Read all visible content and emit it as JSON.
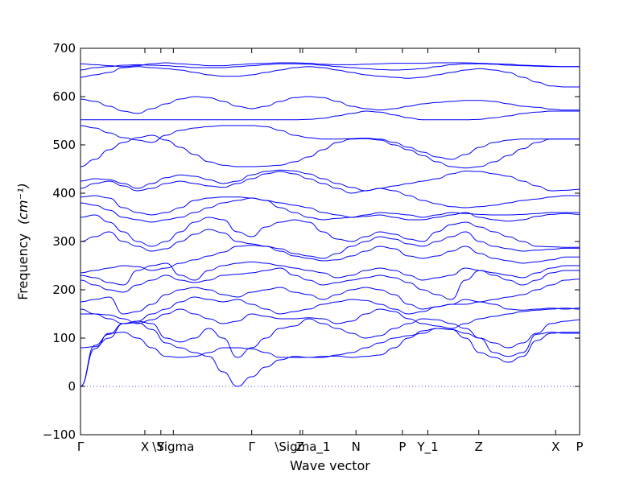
{
  "chart_data": {
    "type": "line",
    "xlabel": "Wave vector",
    "ylabel": "Frequency",
    "ylabel_unit": "(cm⁻¹)",
    "ylim": [
      -100,
      700
    ],
    "yticks": [
      -100,
      0,
      100,
      200,
      300,
      400,
      500,
      600,
      700
    ],
    "xlim": [
      0,
      1
    ],
    "high_symmetry_points": [
      {
        "label": "Γ",
        "x": 0.0
      },
      {
        "label": "X",
        "x": 0.129
      },
      {
        "label": "Y",
        "x": 0.161
      },
      {
        "label": "\\Sigma",
        "x": 0.186
      },
      {
        "label": "Γ",
        "x": 0.343
      },
      {
        "label": "Z",
        "x": 0.44
      },
      {
        "label": "\\Sigma_1",
        "x": 0.445
      },
      {
        "label": "N",
        "x": 0.552
      },
      {
        "label": "P",
        "x": 0.645
      },
      {
        "label": "Y_1",
        "x": 0.696
      },
      {
        "label": "Z",
        "x": 0.798
      },
      {
        "label": "X",
        "x": 0.952
      },
      {
        "label": "P",
        "x": 1.0
      }
    ],
    "zero_line": {
      "y": 0,
      "style": "dotted"
    },
    "grid": false,
    "line_color": "#0000ff",
    "series": [
      {
        "values": [
          0,
          78,
          110,
          112,
          100,
          80,
          62,
          60,
          62,
          70,
          80,
          80,
          78,
          70,
          60,
          60,
          60,
          62,
          63,
          60,
          62,
          65,
          80,
          100,
          115,
          120,
          118,
          110,
          100,
          70,
          62,
          70,
          108,
          112,
          110,
          110
        ]
      },
      {
        "values": [
          0,
          85,
          108,
          130,
          132,
          118,
          90,
          80,
          70,
          62,
          30,
          0,
          20,
          40,
          55,
          62,
          60,
          60,
          65,
          70,
          80,
          90,
          100,
          105,
          110,
          120,
          118,
          100,
          70,
          60,
          50,
          62,
          95,
          110,
          112,
          112
        ]
      },
      {
        "values": [
          80,
          82,
          100,
          130,
          135,
          130,
          100,
          92,
          100,
          120,
          100,
          60,
          80,
          100,
          120,
          125,
          140,
          130,
          120,
          110,
          100,
          105,
          120,
          130,
          140,
          138,
          130,
          120,
          100,
          90,
          80,
          90,
          110,
          130,
          135,
          138
        ]
      },
      {
        "values": [
          150,
          150,
          148,
          140,
          130,
          138,
          150,
          160,
          150,
          140,
          130,
          135,
          150,
          145,
          140,
          140,
          142,
          140,
          130,
          135,
          150,
          160,
          155,
          140,
          130,
          125,
          120,
          130,
          140,
          145,
          150,
          155,
          158,
          160,
          162,
          160
        ]
      },
      {
        "values": [
          160,
          150,
          140,
          130,
          135,
          150,
          160,
          175,
          185,
          180,
          175,
          180,
          170,
          160,
          150,
          155,
          160,
          170,
          175,
          180,
          178,
          170,
          160,
          150,
          155,
          165,
          170,
          180,
          175,
          170,
          160,
          158,
          160,
          162,
          160,
          162
        ]
      },
      {
        "values": [
          175,
          180,
          185,
          150,
          155,
          170,
          190,
          200,
          205,
          200,
          190,
          185,
          195,
          200,
          205,
          195,
          190,
          180,
          190,
          200,
          205,
          200,
          190,
          170,
          160,
          165,
          170,
          170,
          175,
          180,
          185,
          190,
          200,
          210,
          220,
          222
        ]
      },
      {
        "values": [
          220,
          210,
          200,
          195,
          210,
          220,
          230,
          220,
          215,
          220,
          230,
          232,
          235,
          240,
          245,
          230,
          220,
          210,
          215,
          220,
          225,
          230,
          225,
          215,
          200,
          190,
          180,
          220,
          240,
          230,
          220,
          210,
          220,
          235,
          240,
          240
        ]
      },
      {
        "values": [
          230,
          225,
          215,
          210,
          240,
          250,
          255,
          230,
          220,
          240,
          250,
          255,
          258,
          255,
          250,
          245,
          240,
          235,
          225,
          230,
          240,
          245,
          240,
          230,
          220,
          225,
          230,
          245,
          240,
          235,
          230,
          225,
          235,
          245,
          250,
          250
        ]
      },
      {
        "values": [
          235,
          240,
          245,
          250,
          248,
          240,
          245,
          255,
          262,
          270,
          278,
          290,
          292,
          290,
          280,
          270,
          265,
          260,
          262,
          270,
          280,
          290,
          285,
          270,
          265,
          270,
          280,
          290,
          275,
          265,
          260,
          255,
          258,
          262,
          268,
          268
        ]
      },
      {
        "values": [
          300,
          310,
          320,
          300,
          290,
          280,
          285,
          300,
          315,
          325,
          318,
          300,
          295,
          290,
          285,
          275,
          270,
          265,
          275,
          290,
          300,
          310,
          305,
          295,
          290,
          300,
          310,
          320,
          300,
          290,
          285,
          280,
          282,
          284,
          286,
          286
        ]
      },
      {
        "values": [
          350,
          355,
          340,
          320,
          300,
          290,
          300,
          320,
          340,
          350,
          345,
          320,
          310,
          330,
          340,
          345,
          340,
          320,
          305,
          300,
          310,
          320,
          315,
          305,
          300,
          320,
          335,
          340,
          330,
          320,
          310,
          300,
          290,
          289,
          288,
          288
        ]
      },
      {
        "values": [
          380,
          375,
          365,
          350,
          345,
          340,
          345,
          350,
          360,
          370,
          380,
          385,
          390,
          385,
          370,
          360,
          350,
          345,
          348,
          350,
          352,
          355,
          350,
          345,
          345,
          350,
          355,
          360,
          350,
          345,
          342,
          345,
          352,
          356,
          358,
          356
        ]
      },
      {
        "values": [
          392,
          395,
          390,
          370,
          360,
          355,
          360,
          370,
          385,
          390,
          392,
          392,
          390,
          385,
          380,
          375,
          370,
          360,
          355,
          350,
          355,
          360,
          358,
          355,
          350,
          355,
          360,
          358,
          356,
          355,
          355,
          356,
          358,
          360,
          360,
          360
        ]
      },
      {
        "values": [
          410,
          420,
          425,
          415,
          405,
          410,
          420,
          425,
          420,
          415,
          412,
          420,
          430,
          440,
          445,
          440,
          430,
          420,
          410,
          400,
          405,
          410,
          405,
          395,
          385,
          378,
          372,
          370,
          372,
          375,
          380,
          385,
          388,
          392,
          395,
          395
        ]
      },
      {
        "values": [
          425,
          430,
          428,
          420,
          410,
          420,
          432,
          438,
          435,
          428,
          420,
          425,
          438,
          445,
          448,
          446,
          440,
          430,
          420,
          412,
          405,
          410,
          415,
          420,
          425,
          430,
          440,
          446,
          445,
          440,
          435,
          425,
          415,
          405,
          406,
          408
        ]
      },
      {
        "values": [
          455,
          470,
          490,
          505,
          515,
          520,
          510,
          495,
          480,
          465,
          458,
          455,
          455,
          456,
          458,
          465,
          475,
          490,
          505,
          512,
          513,
          510,
          500,
          490,
          478,
          465,
          455,
          452,
          455,
          465,
          478,
          492,
          505,
          512,
          512,
          512
        ]
      },
      {
        "values": [
          540,
          535,
          525,
          515,
          510,
          505,
          520,
          530,
          535,
          538,
          540,
          540,
          540,
          538,
          530,
          520,
          515,
          512,
          512,
          513,
          514,
          512,
          505,
          495,
          485,
          475,
          470,
          480,
          495,
          505,
          510,
          512,
          512,
          512,
          512,
          512
        ]
      },
      {
        "values": [
          552,
          552,
          552,
          552,
          552,
          552,
          552,
          552,
          552,
          552,
          552,
          552,
          552,
          552,
          552,
          552,
          553,
          555,
          560,
          565,
          570,
          568,
          562,
          556,
          552,
          552,
          552,
          552,
          553,
          556,
          560,
          565,
          568,
          570,
          570,
          570
        ]
      },
      {
        "values": [
          595,
          590,
          580,
          570,
          565,
          575,
          585,
          595,
          600,
          598,
          590,
          580,
          575,
          580,
          590,
          598,
          600,
          598,
          590,
          580,
          575,
          572,
          575,
          580,
          585,
          588,
          590,
          592,
          592,
          590,
          585,
          580,
          578,
          574,
          572,
          572
        ]
      },
      {
        "values": [
          640,
          645,
          650,
          660,
          662,
          660,
          658,
          655,
          650,
          645,
          642,
          642,
          645,
          650,
          655,
          660,
          662,
          660,
          655,
          650,
          645,
          642,
          640,
          638,
          640,
          645,
          650,
          655,
          658,
          655,
          650,
          640,
          630,
          622,
          620,
          620
        ]
      },
      {
        "values": [
          655,
          660,
          662,
          665,
          666,
          665,
          664,
          662,
          660,
          660,
          660,
          662,
          664,
          666,
          668,
          668,
          667,
          665,
          662,
          660,
          658,
          656,
          655,
          656,
          658,
          662,
          666,
          668,
          668,
          667,
          665,
          664,
          663,
          662,
          662,
          662
        ]
      },
      {
        "values": [
          668,
          666,
          664,
          662,
          664,
          668,
          670,
          668,
          666,
          664,
          664,
          666,
          668,
          669,
          670,
          670,
          669,
          667,
          666,
          666,
          667,
          668,
          669,
          669,
          669,
          670,
          670,
          670,
          669,
          668,
          667,
          665,
          664,
          663,
          662,
          662
        ]
      }
    ]
  }
}
